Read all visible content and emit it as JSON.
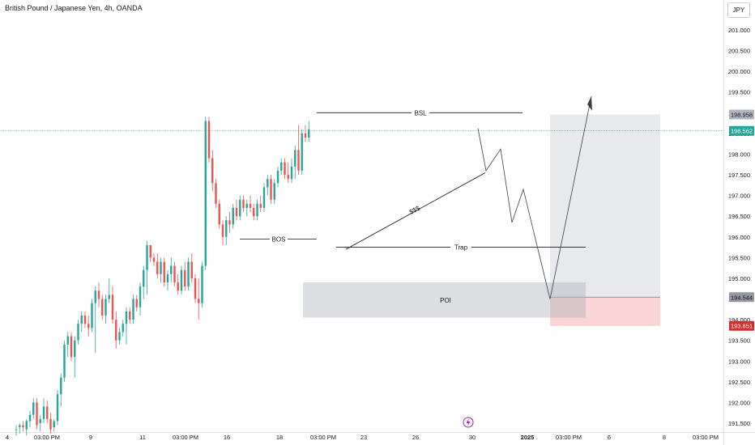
{
  "header": {
    "title": "British Pound / Japanese Yen, 4h, OANDA",
    "currency": "JPY"
  },
  "colors": {
    "up": "#26a69a",
    "down": "#ef5350",
    "zone": "#b2b5be",
    "target": "#f7a1a5",
    "line": "#131722"
  },
  "chart_data": {
    "type": "candlestick",
    "title": "British Pound / Japanese Yen, 4h, OANDA",
    "ylim": [
      191.25,
      201.5
    ],
    "y_ticks": [
      "201.000",
      "200.500",
      "200.000",
      "199.500",
      "199.000",
      "198.500",
      "198.000",
      "197.500",
      "197.000",
      "196.500",
      "196.000",
      "195.500",
      "195.000",
      "194.500",
      "194.000",
      "193.500",
      "193.000",
      "192.500",
      "192.000",
      "191.500"
    ],
    "x_ticks": [
      "4",
      "03:00 PM",
      "9",
      "11",
      "03:00 PM",
      "16",
      "18",
      "03:00 PM",
      "23",
      "26",
      "30",
      "2025",
      "03:00 PM",
      "6",
      "8",
      "03:00 PM"
    ],
    "price_labels": [
      {
        "value": 198.958,
        "text": "198.958",
        "kind": "bsl"
      },
      {
        "value": 198.562,
        "text": "198.562",
        "kind": "last"
      },
      {
        "value": 194.544,
        "text": "194.544",
        "kind": "target"
      },
      {
        "value": 193.851,
        "text": "193.851",
        "kind": "stop"
      }
    ],
    "annotations": [
      "BSL",
      "BOS",
      "Trap",
      "$$$",
      "POI"
    ],
    "candles": [
      {
        "o": 191.35,
        "h": 191.45,
        "l": 191.2,
        "c": 191.35
      },
      {
        "o": 191.4,
        "h": 191.5,
        "l": 191.25,
        "c": 191.45
      },
      {
        "o": 191.45,
        "h": 191.55,
        "l": 191.3,
        "c": 191.4
      },
      {
        "o": 191.35,
        "h": 191.6,
        "l": 191.2,
        "c": 191.55
      },
      {
        "o": 191.55,
        "h": 191.8,
        "l": 191.4,
        "c": 191.7
      },
      {
        "o": 191.7,
        "h": 192.1,
        "l": 191.6,
        "c": 192.0
      },
      {
        "o": 192.0,
        "h": 192.1,
        "l": 191.35,
        "c": 191.45
      },
      {
        "o": 191.5,
        "h": 191.7,
        "l": 191.3,
        "c": 191.6
      },
      {
        "o": 191.6,
        "h": 192.1,
        "l": 191.5,
        "c": 191.9
      },
      {
        "o": 191.9,
        "h": 192.05,
        "l": 191.5,
        "c": 191.6
      },
      {
        "o": 191.6,
        "h": 191.75,
        "l": 191.25,
        "c": 191.35
      },
      {
        "o": 191.4,
        "h": 191.6,
        "l": 191.3,
        "c": 191.55
      },
      {
        "o": 191.55,
        "h": 192.3,
        "l": 191.45,
        "c": 192.2
      },
      {
        "o": 192.2,
        "h": 192.7,
        "l": 191.9,
        "c": 192.6
      },
      {
        "o": 192.6,
        "h": 193.5,
        "l": 192.5,
        "c": 193.4
      },
      {
        "o": 193.4,
        "h": 193.7,
        "l": 193.1,
        "c": 193.6
      },
      {
        "o": 193.6,
        "h": 193.7,
        "l": 193.0,
        "c": 193.1
      },
      {
        "o": 193.1,
        "h": 193.6,
        "l": 192.6,
        "c": 193.5
      },
      {
        "o": 193.5,
        "h": 194.0,
        "l": 193.4,
        "c": 193.9
      },
      {
        "o": 193.9,
        "h": 194.2,
        "l": 193.7,
        "c": 194.1
      },
      {
        "o": 194.1,
        "h": 194.2,
        "l": 193.8,
        "c": 193.9
      },
      {
        "o": 193.9,
        "h": 194.1,
        "l": 193.6,
        "c": 193.8
      },
      {
        "o": 193.8,
        "h": 194.5,
        "l": 193.7,
        "c": 194.4
      },
      {
        "o": 194.4,
        "h": 194.8,
        "l": 193.2,
        "c": 194.7
      },
      {
        "o": 194.7,
        "h": 194.9,
        "l": 194.3,
        "c": 194.5
      },
      {
        "o": 194.5,
        "h": 194.6,
        "l": 194.0,
        "c": 194.1
      },
      {
        "o": 194.1,
        "h": 194.6,
        "l": 193.9,
        "c": 194.5
      },
      {
        "o": 194.5,
        "h": 195.0,
        "l": 194.4,
        "c": 194.6
      },
      {
        "o": 194.6,
        "h": 194.8,
        "l": 193.9,
        "c": 194.0
      },
      {
        "o": 194.0,
        "h": 194.2,
        "l": 193.3,
        "c": 193.5
      },
      {
        "o": 193.5,
        "h": 193.8,
        "l": 193.4,
        "c": 193.7
      },
      {
        "o": 193.7,
        "h": 194.0,
        "l": 193.6,
        "c": 193.9
      },
      {
        "o": 193.9,
        "h": 194.3,
        "l": 193.4,
        "c": 194.2
      },
      {
        "o": 194.2,
        "h": 194.3,
        "l": 193.9,
        "c": 194.0
      },
      {
        "o": 194.0,
        "h": 194.6,
        "l": 193.9,
        "c": 194.5
      },
      {
        "o": 194.5,
        "h": 194.6,
        "l": 194.2,
        "c": 194.3
      },
      {
        "o": 194.3,
        "h": 194.9,
        "l": 194.1,
        "c": 194.8
      },
      {
        "o": 194.8,
        "h": 195.3,
        "l": 194.5,
        "c": 195.2
      },
      {
        "o": 195.2,
        "h": 195.9,
        "l": 194.6,
        "c": 195.8
      },
      {
        "o": 195.8,
        "h": 195.8,
        "l": 195.4,
        "c": 195.5
      },
      {
        "o": 195.5,
        "h": 195.6,
        "l": 195.3,
        "c": 195.4
      },
      {
        "o": 195.4,
        "h": 195.6,
        "l": 195.0,
        "c": 195.1
      },
      {
        "o": 195.1,
        "h": 195.5,
        "l": 194.9,
        "c": 195.4
      },
      {
        "o": 195.4,
        "h": 195.5,
        "l": 194.8,
        "c": 194.9
      },
      {
        "o": 194.9,
        "h": 195.2,
        "l": 194.7,
        "c": 195.1
      },
      {
        "o": 195.1,
        "h": 195.5,
        "l": 194.9,
        "c": 195.3
      },
      {
        "o": 195.3,
        "h": 195.4,
        "l": 194.8,
        "c": 194.9
      },
      {
        "o": 194.9,
        "h": 195.1,
        "l": 194.6,
        "c": 194.7
      },
      {
        "o": 194.7,
        "h": 195.3,
        "l": 194.6,
        "c": 195.2
      },
      {
        "o": 195.2,
        "h": 195.4,
        "l": 194.7,
        "c": 194.8
      },
      {
        "o": 194.8,
        "h": 195.5,
        "l": 194.7,
        "c": 195.4
      },
      {
        "o": 195.4,
        "h": 195.6,
        "l": 194.9,
        "c": 195.0
      },
      {
        "o": 195.0,
        "h": 195.1,
        "l": 194.4,
        "c": 194.5
      },
      {
        "o": 194.5,
        "h": 195.0,
        "l": 194.0,
        "c": 194.4
      },
      {
        "o": 194.4,
        "h": 195.4,
        "l": 194.3,
        "c": 195.3
      },
      {
        "o": 195.3,
        "h": 198.9,
        "l": 195.2,
        "c": 198.8
      },
      {
        "o": 198.8,
        "h": 198.9,
        "l": 197.8,
        "c": 197.9
      },
      {
        "o": 197.9,
        "h": 198.1,
        "l": 197.1,
        "c": 197.3
      },
      {
        "o": 197.3,
        "h": 197.4,
        "l": 196.7,
        "c": 196.8
      },
      {
        "o": 196.8,
        "h": 196.9,
        "l": 196.2,
        "c": 196.3
      },
      {
        "o": 196.3,
        "h": 196.4,
        "l": 195.8,
        "c": 196.0
      },
      {
        "o": 196.0,
        "h": 196.5,
        "l": 195.8,
        "c": 196.4
      },
      {
        "o": 196.4,
        "h": 196.6,
        "l": 196.1,
        "c": 196.3
      },
      {
        "o": 196.3,
        "h": 196.8,
        "l": 196.2,
        "c": 196.7
      },
      {
        "o": 196.7,
        "h": 196.9,
        "l": 196.4,
        "c": 196.5
      },
      {
        "o": 196.5,
        "h": 197.0,
        "l": 196.4,
        "c": 196.9
      },
      {
        "o": 196.9,
        "h": 197.0,
        "l": 196.6,
        "c": 196.7
      },
      {
        "o": 196.7,
        "h": 196.9,
        "l": 196.5,
        "c": 196.8
      },
      {
        "o": 196.8,
        "h": 197.0,
        "l": 196.6,
        "c": 196.7
      },
      {
        "o": 196.7,
        "h": 196.8,
        "l": 196.4,
        "c": 196.5
      },
      {
        "o": 196.5,
        "h": 196.9,
        "l": 196.4,
        "c": 196.8
      },
      {
        "o": 196.8,
        "h": 197.0,
        "l": 196.6,
        "c": 196.7
      },
      {
        "o": 196.7,
        "h": 197.3,
        "l": 196.6,
        "c": 197.2
      },
      {
        "o": 197.2,
        "h": 197.5,
        "l": 197.0,
        "c": 197.4
      },
      {
        "o": 197.4,
        "h": 197.5,
        "l": 196.8,
        "c": 196.9
      },
      {
        "o": 196.9,
        "h": 197.4,
        "l": 196.8,
        "c": 197.3
      },
      {
        "o": 197.3,
        "h": 197.7,
        "l": 197.2,
        "c": 197.6
      },
      {
        "o": 197.6,
        "h": 197.9,
        "l": 197.5,
        "c": 197.8
      },
      {
        "o": 197.8,
        "h": 197.9,
        "l": 197.4,
        "c": 197.5
      },
      {
        "o": 197.5,
        "h": 197.8,
        "l": 197.3,
        "c": 197.4
      },
      {
        "o": 197.4,
        "h": 197.9,
        "l": 197.3,
        "c": 197.7
      },
      {
        "o": 197.7,
        "h": 198.2,
        "l": 197.4,
        "c": 198.1
      },
      {
        "o": 198.1,
        "h": 198.7,
        "l": 197.5,
        "c": 197.6
      },
      {
        "o": 197.6,
        "h": 198.6,
        "l": 197.5,
        "c": 198.5
      },
      {
        "o": 198.5,
        "h": 198.7,
        "l": 198.3,
        "c": 198.4
      },
      {
        "o": 198.4,
        "h": 198.8,
        "l": 198.3,
        "c": 198.6
      }
    ]
  }
}
